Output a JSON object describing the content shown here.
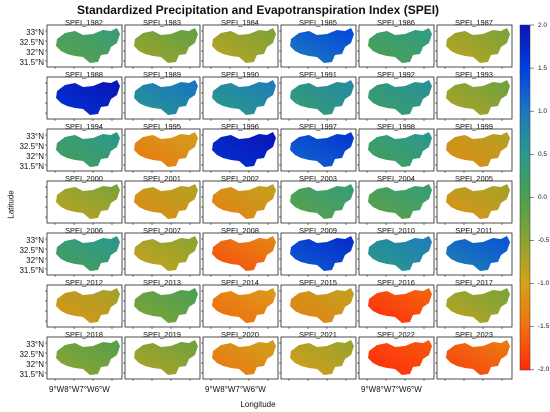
{
  "figure": {
    "title": "Standardized Precipitation and Evapotranspiration Index (SPEI)",
    "xlabel": "Longitude",
    "ylabel": "Latitude",
    "lat_ticks": [
      "33°N",
      "32.5°N",
      "32°N",
      "31.5°N"
    ],
    "lon_ticks_text": "9°W8°W7°W6°W"
  },
  "colorbar": {
    "ticks": [
      "2.0",
      "1.5",
      "1.0",
      "0.5",
      "0.0",
      "-0.5",
      "-1.0",
      "-1.5",
      "-2.0"
    ],
    "colors": [
      "#0a14b4",
      "#0040e0",
      "#1a78c0",
      "#2a9a8c",
      "#4aa050",
      "#8aa430",
      "#d6a21a",
      "#f07010",
      "#ff2a0a"
    ]
  },
  "panels": [
    {
      "label": "SPEI_1982",
      "value": 0.1
    },
    {
      "label": "SPEI_1983",
      "value": -0.4
    },
    {
      "label": "SPEI_1984",
      "value": -0.6
    },
    {
      "label": "SPEI_1985",
      "value": 1.2
    },
    {
      "label": "SPEI_1986",
      "value": 0.2
    },
    {
      "label": "SPEI_1987",
      "value": -0.6
    },
    {
      "label": "SPEI_1988",
      "value": 1.9
    },
    {
      "label": "SPEI_1989",
      "value": 0.8
    },
    {
      "label": "SPEI_1990",
      "value": 0.7
    },
    {
      "label": "SPEI_1991",
      "value": 0.5
    },
    {
      "label": "SPEI_1992",
      "value": 0.4
    },
    {
      "label": "SPEI_1993",
      "value": -0.5
    },
    {
      "label": "SPEI_1994",
      "value": 0.3
    },
    {
      "label": "SPEI_1995",
      "value": -1.2
    },
    {
      "label": "SPEI_1996",
      "value": 1.9
    },
    {
      "label": "SPEI_1997",
      "value": 1.4
    },
    {
      "label": "SPEI_1998",
      "value": 0.3
    },
    {
      "label": "SPEI_1999",
      "value": -1.0
    },
    {
      "label": "SPEI_2000",
      "value": -0.6
    },
    {
      "label": "SPEI_2001",
      "value": -1.0
    },
    {
      "label": "SPEI_2002",
      "value": -1.1
    },
    {
      "label": "SPEI_2003",
      "value": 0.1
    },
    {
      "label": "SPEI_2004",
      "value": 0.1
    },
    {
      "label": "SPEI_2005",
      "value": -0.9
    },
    {
      "label": "SPEI_2006",
      "value": 0.3
    },
    {
      "label": "SPEI_2007",
      "value": -0.7
    },
    {
      "label": "SPEI_2008",
      "value": -1.5
    },
    {
      "label": "SPEI_2009",
      "value": 1.5
    },
    {
      "label": "SPEI_2010",
      "value": 0.7
    },
    {
      "label": "SPEI_2011",
      "value": 1.1
    },
    {
      "label": "SPEI_2012",
      "value": -0.9
    },
    {
      "label": "SPEI_2013",
      "value": -0.2
    },
    {
      "label": "SPEI_2014",
      "value": -1.3
    },
    {
      "label": "SPEI_2015",
      "value": -1.1
    },
    {
      "label": "SPEI_2016",
      "value": -1.8
    },
    {
      "label": "SPEI_2017",
      "value": -0.6
    },
    {
      "label": "SPEI_2018",
      "value": -0.3
    },
    {
      "label": "SPEI_2019",
      "value": -0.5
    },
    {
      "label": "SPEI_2020",
      "value": -1.2
    },
    {
      "label": "SPEI_2021",
      "value": -0.8
    },
    {
      "label": "SPEI_2022",
      "value": -1.9
    },
    {
      "label": "SPEI_2023",
      "value": -1.6
    }
  ]
}
